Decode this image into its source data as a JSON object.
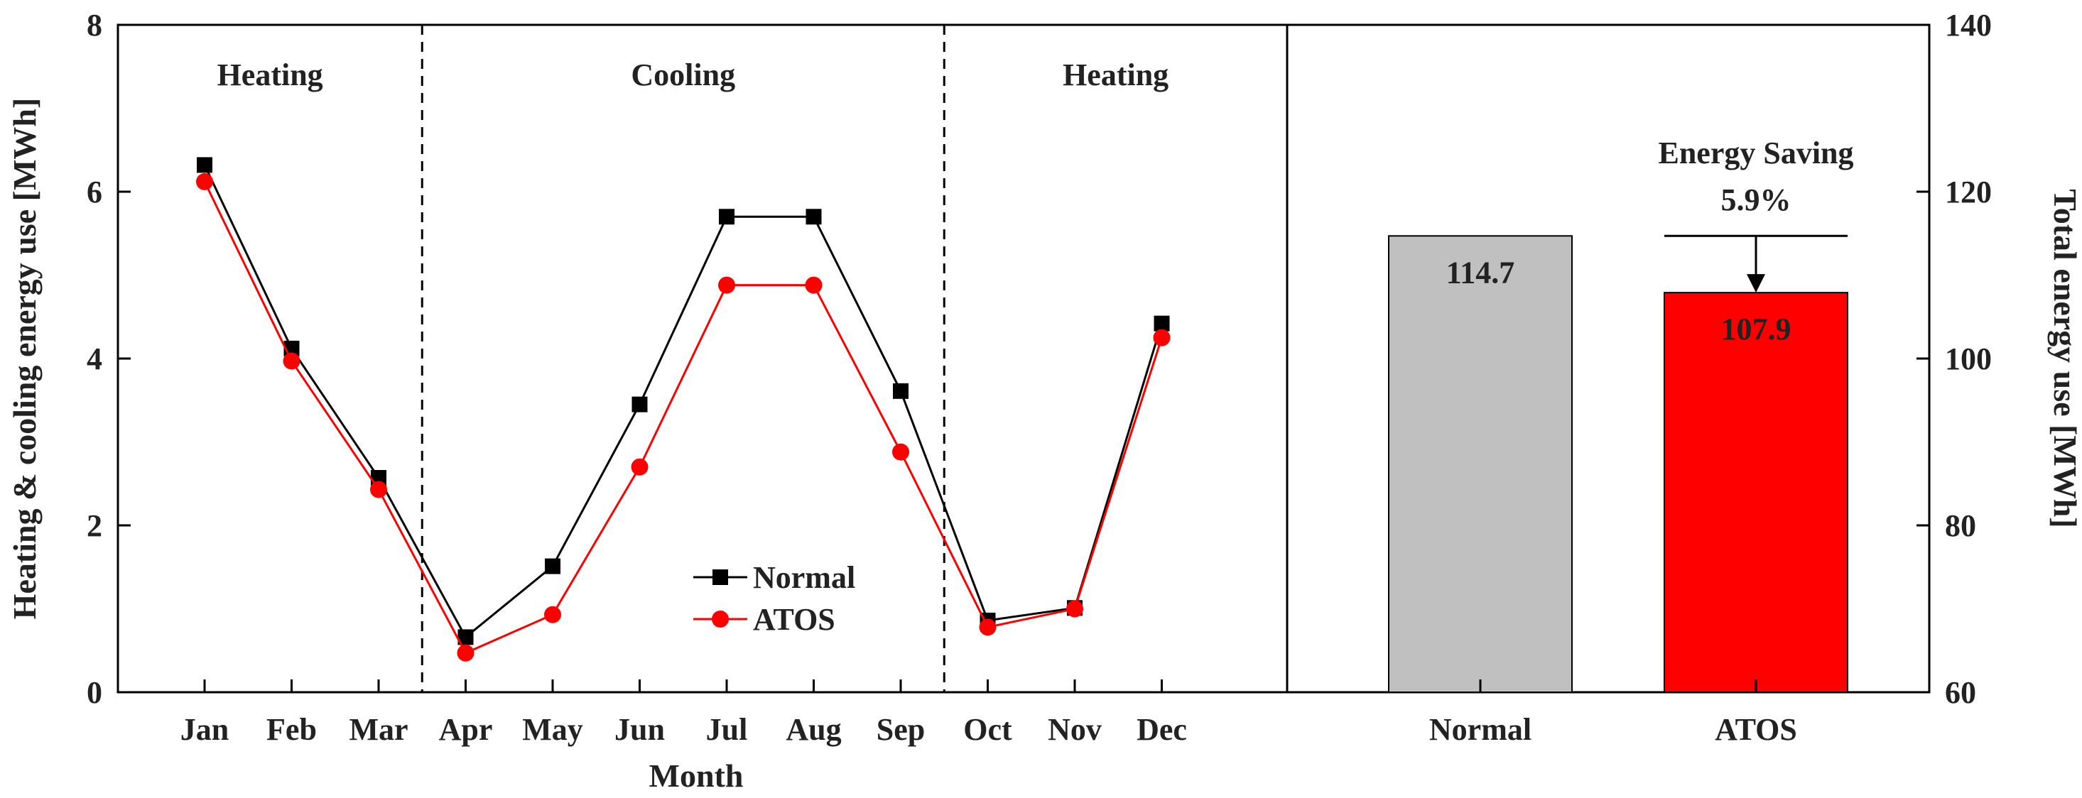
{
  "chart_data": [
    {
      "type": "line",
      "title": "",
      "xlabel": "Month",
      "ylabel": "Heating & cooling energy use [MWh]",
      "categories": [
        "Jan",
        "Feb",
        "Mar",
        "Apr",
        "May",
        "Jun",
        "Jul",
        "Aug",
        "Sep",
        "Oct",
        "Nov",
        "Dec"
      ],
      "series": [
        {
          "name": "Normal",
          "color": "#000000",
          "marker": "square",
          "values": [
            6.32,
            4.12,
            2.57,
            0.66,
            1.51,
            3.45,
            5.7,
            5.7,
            3.61,
            0.86,
            1.01,
            4.42
          ]
        },
        {
          "name": "ATOS",
          "color": "#ff0000",
          "marker": "circle",
          "values": [
            6.12,
            3.97,
            2.43,
            0.47,
            0.93,
            2.7,
            4.88,
            4.88,
            2.88,
            0.78,
            1.0,
            4.25
          ]
        }
      ],
      "ylim": [
        0,
        8
      ],
      "yticks": [
        0,
        2,
        4,
        6,
        8
      ],
      "regions": [
        {
          "label": "Heating",
          "from": "Jan",
          "to": "Mar"
        },
        {
          "label": "Cooling",
          "from": "Apr",
          "to": "Sep"
        },
        {
          "label": "Heating",
          "from": "Oct",
          "to": "Dec"
        }
      ],
      "legend": "lower-center"
    },
    {
      "type": "bar",
      "title": "",
      "xlabel": "",
      "ylabel": "Total energy use [MWh]",
      "categories": [
        "Normal",
        "ATOS"
      ],
      "values": [
        114.7,
        107.9
      ],
      "value_labels": [
        "114.7",
        "107.9"
      ],
      "colors": [
        "#c0c0c0",
        "#ff0000"
      ],
      "ylim": [
        60,
        140
      ],
      "yticks": [
        60,
        80,
        100,
        120,
        140
      ],
      "annotation": {
        "title": "Energy Saving",
        "value": "5.9%"
      }
    }
  ]
}
